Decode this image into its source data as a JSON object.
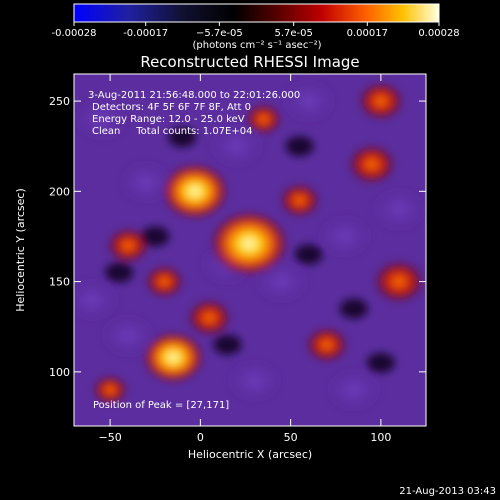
{
  "chart_data": {
    "type": "heatmap",
    "title": "Reconstructed RHESSI Image",
    "xlabel": "Heliocentric X (arcsec)",
    "ylabel": "Heliocentric Y (arcsec)",
    "xlim": [
      -70,
      125
    ],
    "ylim": [
      70,
      265
    ],
    "x_ticks": [
      -50,
      0,
      50,
      100
    ],
    "y_ticks": [
      100,
      150,
      200,
      250
    ],
    "colorbar": {
      "min": -0.00028,
      "max": 0.00028,
      "ticks": [
        -0.00028,
        -0.00017,
        -5.7e-05,
        5.7e-05,
        0.00017,
        0.00028
      ],
      "tick_labels": [
        "-0.00028",
        "-0.00017",
        "−5.7e-05",
        "5.7e-05",
        "0.00017",
        "0.00028"
      ],
      "label": "(photons cm⁻² s⁻¹ asec⁻²)"
    },
    "annotations": {
      "time": "3-Aug-2011 21:56:48.000 to 22:01:26.000",
      "detectors": "Detectors: 4F 5F 6F 7F 8F, Att 0",
      "energy": "Energy Range: 12.0 - 25.0 keV",
      "clean": "Clean     Total counts: 1.07E+04",
      "peak": "Position of Peak = [27,171]"
    },
    "peak_position": [
      27,
      171
    ],
    "bright_sources": [
      {
        "x": 27,
        "y": 171,
        "value": 0.00028
      },
      {
        "x": -3,
        "y": 200,
        "value": 0.00022
      },
      {
        "x": -15,
        "y": 108,
        "value": 0.00019
      },
      {
        "x": 110,
        "y": 150,
        "value": 0.00015
      },
      {
        "x": 95,
        "y": 215,
        "value": 0.00013
      },
      {
        "x": 100,
        "y": 250,
        "value": 0.00012
      },
      {
        "x": 5,
        "y": 130,
        "value": 0.00011
      },
      {
        "x": -40,
        "y": 170,
        "value": 0.0001
      },
      {
        "x": 70,
        "y": 115,
        "value": 0.0001
      },
      {
        "x": 55,
        "y": 195,
        "value": 9e-05
      },
      {
        "x": -20,
        "y": 150,
        "value": 8e-05
      },
      {
        "x": 35,
        "y": 240,
        "value": 7e-05
      },
      {
        "x": -50,
        "y": 90,
        "value": 6e-05
      }
    ],
    "footer_date": "21-Aug-2013 03:43"
  }
}
